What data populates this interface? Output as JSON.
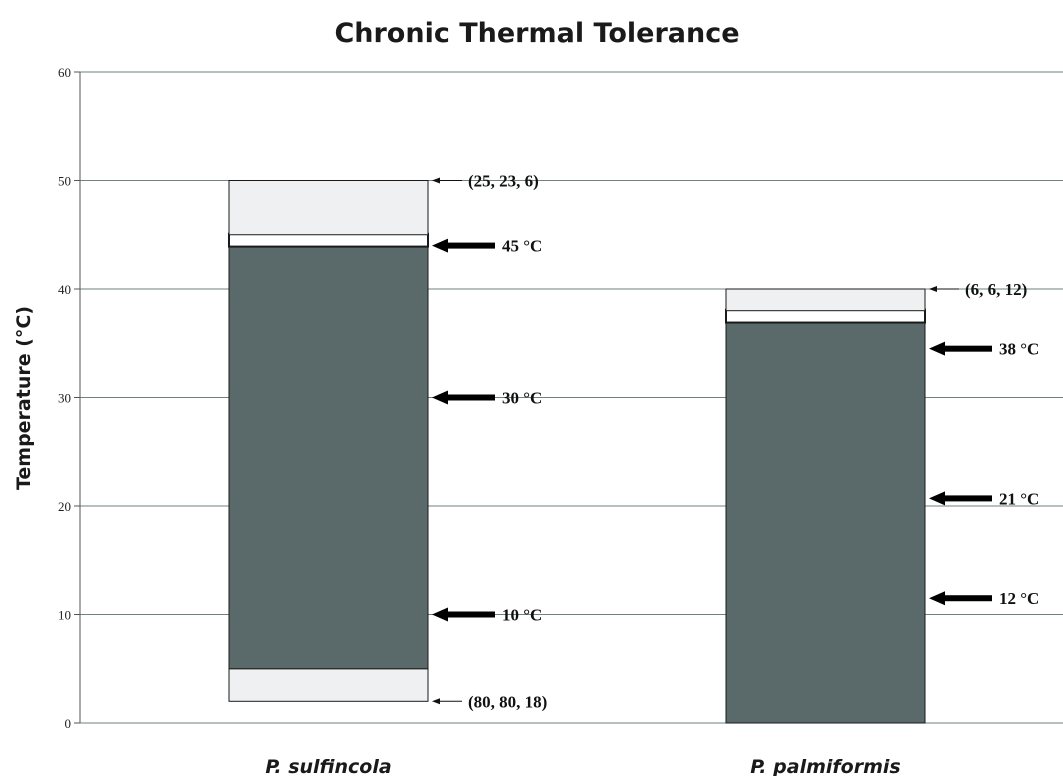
{
  "chart_data": {
    "type": "bar",
    "title": "Chronic Thermal Tolerance",
    "ylabel": "Temperature (°C)",
    "xlabel": "",
    "ylim": [
      0,
      60
    ],
    "y_ticks": [
      0,
      10,
      20,
      30,
      40,
      50,
      60
    ],
    "grid": true,
    "categories": [
      "P. sulfincola",
      "P. palmiformis"
    ],
    "bars": [
      {
        "category": "P. sulfincola",
        "segments": [
          {
            "role": "lower-range",
            "from": 2,
            "to": 5,
            "color": "#eef0f1"
          },
          {
            "role": "growth",
            "from": 5,
            "to": 44,
            "color": "#5a6a6b"
          },
          {
            "role": "optimum",
            "from": 44,
            "to": 45,
            "color": "#ffffff"
          },
          {
            "role": "upper-range",
            "from": 45,
            "to": 50,
            "color": "#eef0f1"
          }
        ],
        "annotations": [
          {
            "text": "(25, 23, 6)",
            "y": 50,
            "arrow": "thin"
          },
          {
            "text": "45 °C",
            "y": 44,
            "arrow": "bold"
          },
          {
            "text": "30 °C",
            "y": 30,
            "arrow": "bold"
          },
          {
            "text": "10 °C",
            "y": 10,
            "arrow": "bold"
          },
          {
            "text": "(80, 80, 18)",
            "y": 2,
            "arrow": "thin"
          }
        ]
      },
      {
        "category": "P. palmiformis",
        "segments": [
          {
            "role": "growth",
            "from": 0,
            "to": 37,
            "color": "#5a6a6b"
          },
          {
            "role": "optimum",
            "from": 37,
            "to": 38,
            "color": "#ffffff"
          },
          {
            "role": "upper-range",
            "from": 38,
            "to": 40,
            "color": "#eef0f1"
          }
        ],
        "annotations": [
          {
            "text": "(6, 6, 12)",
            "y": 40,
            "arrow": "thin"
          },
          {
            "text": "38 °C",
            "y": 34.5,
            "arrow": "bold"
          },
          {
            "text": "21 °C",
            "y": 20.7,
            "arrow": "bold"
          },
          {
            "text": "12 °C",
            "y": 11.5,
            "arrow": "bold"
          }
        ]
      }
    ]
  }
}
